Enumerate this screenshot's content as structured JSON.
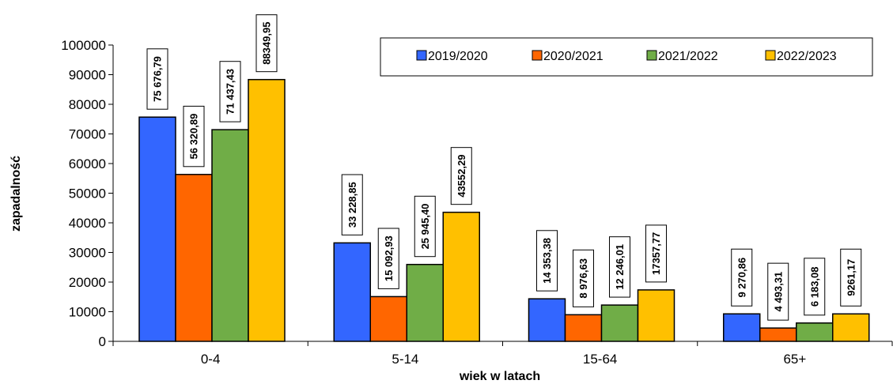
{
  "chart_data": {
    "type": "bar",
    "title": "",
    "xlabel": "wiek w latach",
    "ylabel": "zapadalność",
    "ylim": [
      0,
      100000
    ],
    "yticks": [
      "0",
      "10000",
      "20000",
      "30000",
      "40000",
      "50000",
      "60000",
      "70000",
      "80000",
      "90000",
      "100000"
    ],
    "grid": false,
    "legend_position": "top-right",
    "categories": [
      "0-4",
      "5-14",
      "15-64",
      "65+"
    ],
    "series": [
      {
        "name": "2019/2020",
        "color": "#3366ff",
        "values": [
          75676.79,
          33228.85,
          14353.38,
          9270.86
        ],
        "labels": [
          "75 676,79",
          "33 228,85",
          "14 353,38",
          "9 270,86"
        ]
      },
      {
        "name": "2020/2021",
        "color": "#ff6600",
        "values": [
          56320.89,
          15092.93,
          8976.63,
          4493.31
        ],
        "labels": [
          "56 320,89",
          "15 092,93",
          "8 976,63",
          "4 493,31"
        ]
      },
      {
        "name": "2021/2022",
        "color": "#70ad47",
        "values": [
          71437.43,
          25945.4,
          12246.01,
          6183.08
        ],
        "labels": [
          "71 437,43",
          "25 945,40",
          "12 246,01",
          "6 183,08"
        ]
      },
      {
        "name": "2022/2023",
        "color": "#ffc000",
        "values": [
          88349.95,
          43552.29,
          17357.77,
          9261.17
        ],
        "labels": [
          "88349,95",
          "43552,29",
          "17357,77",
          "9261,17"
        ]
      }
    ]
  }
}
